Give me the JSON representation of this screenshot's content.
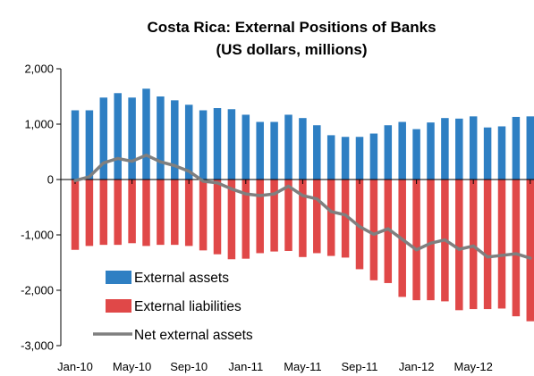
{
  "chart_data": {
    "type": "bar",
    "title": "Costa Rica:  External Positions of Banks",
    "subtitle": "(US dollars, millions)",
    "xlabel": "",
    "ylabel": "",
    "ylim": [
      -3000,
      2000
    ],
    "yticks": [
      2000,
      1000,
      0,
      -1000,
      -2000,
      -3000
    ],
    "ytick_labels": [
      "2,000",
      "1,000",
      "0",
      "-1,000",
      "-2,000",
      "-3,000"
    ],
    "xtick_labels": [
      "Jan-10",
      "May-10",
      "Sep-10",
      "Jan-11",
      "May-11",
      "Sep-11",
      "Jan-12",
      "May-12"
    ],
    "xtick_every": 4,
    "grid": false,
    "legend_position": "bottom-left inside",
    "colors": {
      "assets": "#2e7fc3",
      "liabilities": "#e04848",
      "net": "#7f7f7f"
    },
    "categories": [
      "Jan-10",
      "Feb-10",
      "Mar-10",
      "Apr-10",
      "May-10",
      "Jun-10",
      "Jul-10",
      "Aug-10",
      "Sep-10",
      "Oct-10",
      "Nov-10",
      "Dec-10",
      "Jan-11",
      "Feb-11",
      "Mar-11",
      "Apr-11",
      "May-11",
      "Jun-11",
      "Jul-11",
      "Aug-11",
      "Sep-11",
      "Oct-11",
      "Nov-11",
      "Dec-11",
      "Jan-12",
      "Feb-12",
      "Mar-12",
      "Apr-12",
      "May-12",
      "Jun-12",
      "Jul-12",
      "Aug-12",
      "Sep-12"
    ],
    "series": [
      {
        "name": "External assets",
        "kind": "bar",
        "values": [
          1250,
          1250,
          1480,
          1560,
          1480,
          1640,
          1500,
          1430,
          1350,
          1250,
          1290,
          1270,
          1170,
          1040,
          1040,
          1170,
          1110,
          980,
          800,
          770,
          770,
          830,
          980,
          1040,
          910,
          1030,
          1110,
          1100,
          1140,
          940,
          960,
          1130,
          1140
        ]
      },
      {
        "name": "External liabilities",
        "kind": "bar",
        "values": [
          -1270,
          -1200,
          -1180,
          -1180,
          -1150,
          -1200,
          -1180,
          -1180,
          -1200,
          -1280,
          -1350,
          -1440,
          -1430,
          -1330,
          -1300,
          -1290,
          -1400,
          -1330,
          -1380,
          -1410,
          -1620,
          -1820,
          -1870,
          -2120,
          -2180,
          -2180,
          -2200,
          -2360,
          -2340,
          -2340,
          -2330,
          -2470,
          -2560
        ]
      },
      {
        "name": "Net external assets",
        "kind": "line",
        "values": [
          -20,
          50,
          300,
          380,
          330,
          440,
          320,
          250,
          150,
          -30,
          -60,
          -170,
          -260,
          -290,
          -260,
          -120,
          -290,
          -350,
          -580,
          -640,
          -850,
          -990,
          -890,
          -1080,
          -1270,
          -1150,
          -1090,
          -1260,
          -1200,
          -1400,
          -1370,
          -1340,
          -1420
        ]
      }
    ]
  }
}
